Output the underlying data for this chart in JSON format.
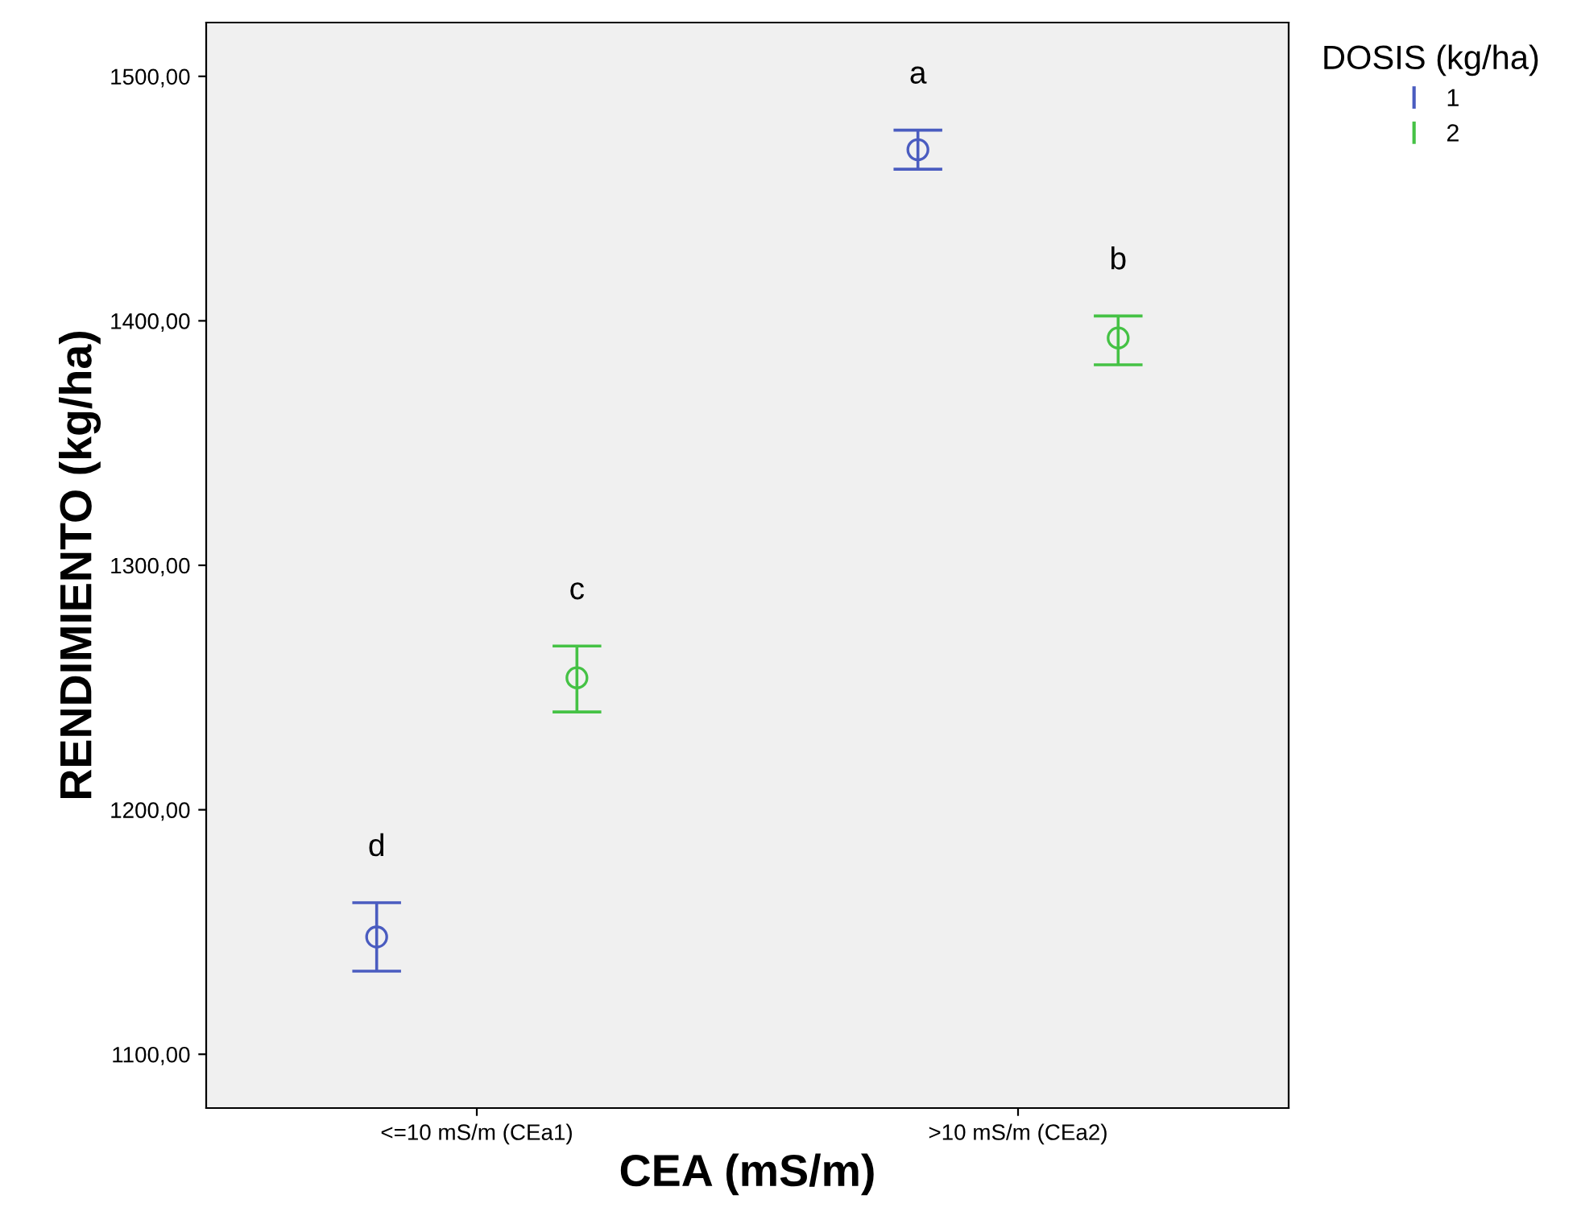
{
  "chart_data": {
    "type": "scatter",
    "xlabel": "CEA (mS/m)",
    "ylabel": "RENDIMIENTO (kg/ha)",
    "legend_title": "DOSIS (kg/ha)",
    "categories": [
      "<=10 mS/m (CEa1)",
      ">10 mS/m (CEa2)"
    ],
    "series": [
      {
        "name": "1",
        "color": "#4a5cc0",
        "values": [
          1148,
          1470
        ],
        "errors": [
          [
            1134,
            1162
          ],
          [
            1462,
            1478
          ]
        ]
      },
      {
        "name": "2",
        "color": "#45c245",
        "values": [
          1254,
          1393
        ],
        "errors": [
          [
            1240,
            1267
          ],
          [
            1382,
            1402
          ]
        ]
      }
    ],
    "ylim": [
      1078,
      1522
    ],
    "yticks": [
      {
        "value": 1100,
        "label": "1100,00"
      },
      {
        "value": 1200,
        "label": "1200,00"
      },
      {
        "value": 1300,
        "label": "1300,00"
      },
      {
        "value": 1400,
        "label": "1400,00"
      },
      {
        "value": 1500,
        "label": "1500,00"
      }
    ],
    "annotations": [
      "d",
      "c",
      "a",
      "b"
    ],
    "marker": "circle",
    "grid": false,
    "legend": "top right"
  }
}
